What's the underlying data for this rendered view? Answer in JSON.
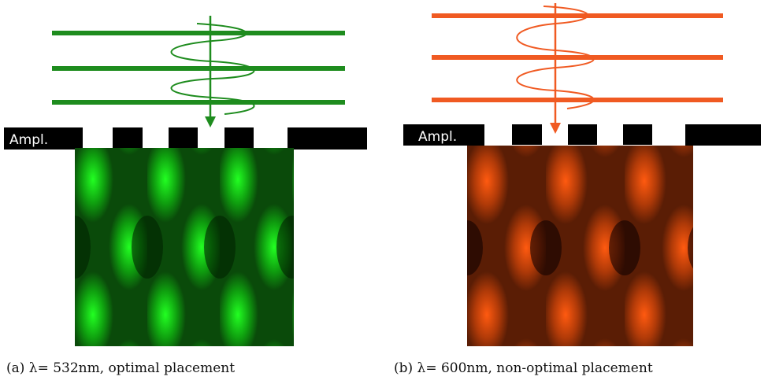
{
  "panels": [
    {
      "label": "Ampl.",
      "caption": "(a) λ= 532nm, optimal placement"
    },
    {
      "label": "Ampl.",
      "caption": "(b) λ= 600nm, non-optimal placement"
    }
  ]
}
